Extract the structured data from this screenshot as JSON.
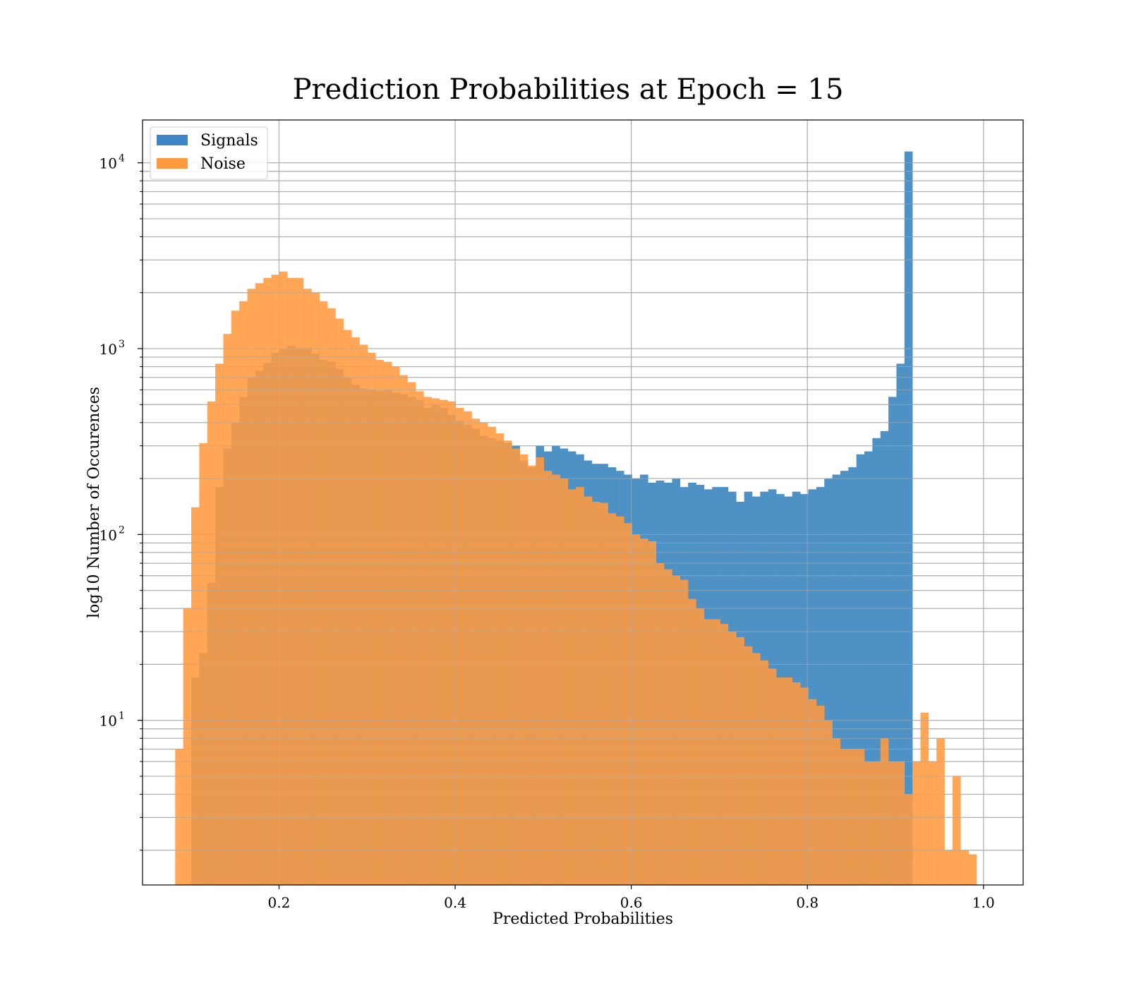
{
  "chart_data": {
    "type": "bar",
    "subtype": "histogram",
    "title": "Prediction Probabilities at Epoch = 15",
    "xlabel": "Predicted Probabilities",
    "ylabel": "log10 Number of Occurences",
    "xlim": [
      0.045,
      1.045
    ],
    "ylim": [
      1.3,
      17000
    ],
    "yscale": "log",
    "grid": true,
    "legend_position": "top-left",
    "xticks": [
      {
        "value": 0.2,
        "label": "0.2"
      },
      {
        "value": 0.4,
        "label": "0.4"
      },
      {
        "value": 0.6,
        "label": "0.6"
      },
      {
        "value": 0.8,
        "label": "0.8"
      },
      {
        "value": 1.0,
        "label": "1.0"
      }
    ],
    "yticks": [
      {
        "value": 10,
        "base": "10",
        "exp": "1"
      },
      {
        "value": 100,
        "base": "10",
        "exp": "2"
      },
      {
        "value": 1000,
        "base": "10",
        "exp": "3"
      },
      {
        "value": 10000,
        "base": "10",
        "exp": "4"
      }
    ],
    "series": [
      {
        "name": "Signals",
        "color": "#4a8fc4",
        "legend_color": "#3d85c6",
        "bins_start": 0.0912,
        "bin_width": 0.0091,
        "values": [
          0,
          17,
          23,
          55,
          180,
          290,
          400,
          550,
          700,
          760,
          840,
          950,
          990,
          1040,
          1010,
          1010,
          940,
          870,
          850,
          780,
          700,
          640,
          610,
          600,
          590,
          600,
          580,
          570,
          550,
          530,
          480,
          500,
          480,
          440,
          410,
          390,
          370,
          340,
          330,
          320,
          310,
          300,
          250,
          230,
          300,
          280,
          300,
          290,
          280,
          270,
          250,
          240,
          240,
          230,
          220,
          210,
          200,
          210,
          190,
          195,
          190,
          200,
          180,
          190,
          185,
          175,
          180,
          180,
          170,
          150,
          170,
          160,
          170,
          175,
          165,
          160,
          170,
          165,
          175,
          180,
          200,
          210,
          220,
          230,
          270,
          280,
          330,
          360,
          550,
          830,
          11500
        ]
      },
      {
        "name": "Noise",
        "color": "#ff9a40",
        "legend_color": "#ff9940",
        "bins_start": 0.0821,
        "bin_width": 0.0091,
        "values": [
          7,
          40,
          140,
          310,
          520,
          830,
          1200,
          1600,
          1800,
          2100,
          2250,
          2400,
          2500,
          2600,
          2400,
          2400,
          2100,
          2000,
          1800,
          1650,
          1450,
          1260,
          1150,
          1050,
          950,
          870,
          850,
          800,
          720,
          660,
          590,
          550,
          540,
          530,
          520,
          480,
          460,
          420,
          400,
          380,
          350,
          320,
          290,
          270,
          235,
          260,
          220,
          210,
          200,
          175,
          180,
          160,
          150,
          148,
          130,
          125,
          115,
          100,
          95,
          92,
          70,
          65,
          60,
          57,
          45,
          40,
          35,
          35,
          33,
          30,
          28,
          25,
          23,
          21,
          19,
          17,
          17,
          16,
          15,
          13,
          12,
          10,
          8,
          7,
          7,
          7,
          6,
          6,
          8,
          6,
          6,
          4,
          6,
          11,
          6,
          8,
          2,
          5,
          2,
          1.9
        ]
      }
    ]
  }
}
